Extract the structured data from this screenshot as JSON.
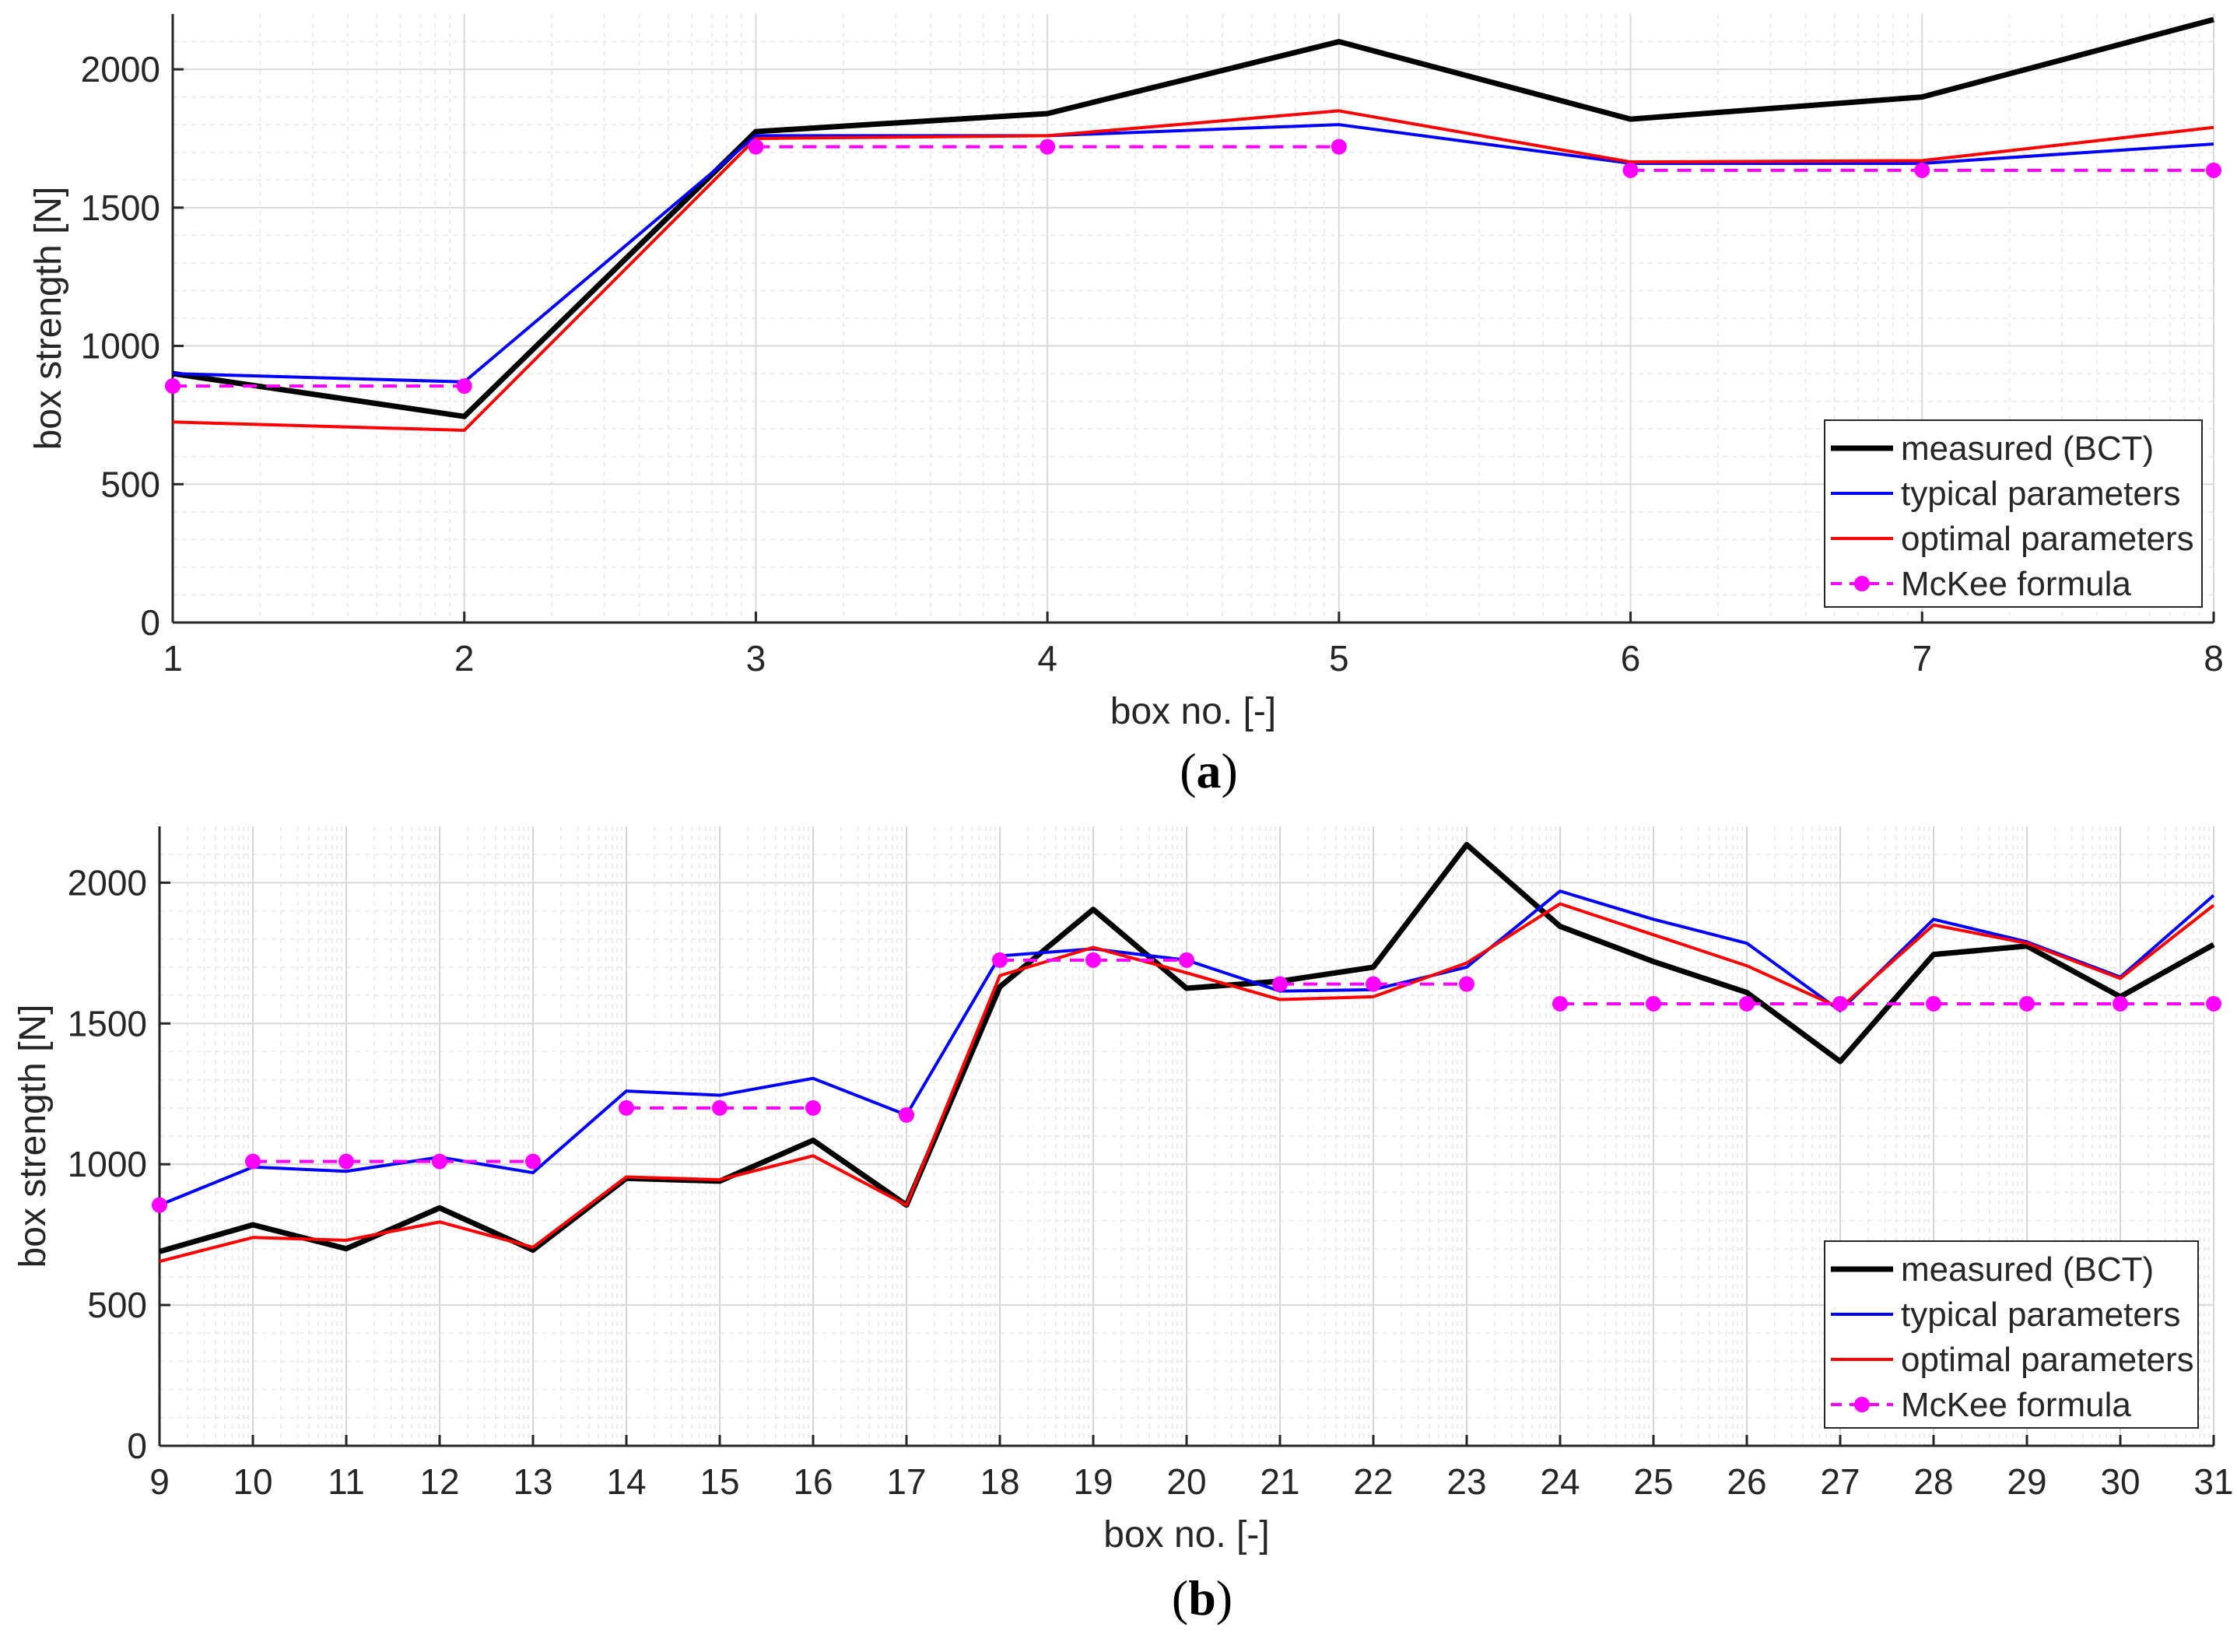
{
  "figure": {
    "colors": {
      "measured": "#000000",
      "typical": "#0000ff",
      "optimal": "#ff0000",
      "mckee": "#ff00ff",
      "grid_major": "#d9d9d9",
      "grid_minor": "#ececec",
      "axis": "#262626"
    }
  },
  "chart_data": [
    {
      "type": "line",
      "panel_label": "a",
      "xlabel": "box no. [-]",
      "ylabel": "box strength [N]",
      "xlim": [
        1,
        8
      ],
      "ylim": [
        0,
        2200
      ],
      "grid": true,
      "minor_grid": true,
      "x_ticks": [
        1,
        2,
        3,
        4,
        5,
        6,
        7,
        8
      ],
      "y_ticks": [
        0,
        500,
        1000,
        1500,
        2000
      ],
      "legend": {
        "placement": "bottom-right",
        "entries": [
          "measured (BCT)",
          "typical parameters",
          "optimal parameters",
          "McKee formula"
        ]
      },
      "x": [
        1,
        2,
        3,
        4,
        5,
        6,
        7,
        8
      ],
      "series": [
        {
          "name": "measured (BCT)",
          "key": "measured",
          "style": "solid-thick",
          "values": [
            900,
            745,
            1775,
            1840,
            2100,
            1820,
            1900,
            2180
          ]
        },
        {
          "name": "typical parameters",
          "key": "typical",
          "style": "solid",
          "values": [
            900,
            870,
            1760,
            1760,
            1800,
            1660,
            1660,
            1730
          ]
        },
        {
          "name": "optimal parameters",
          "key": "optimal",
          "style": "solid",
          "values": [
            725,
            695,
            1750,
            1760,
            1850,
            1665,
            1670,
            1790
          ]
        },
        {
          "name": "McKee formula",
          "key": "mckee",
          "style": "dashed-markers",
          "segments": [
            [
              1,
              2
            ],
            [
              3,
              4,
              5
            ],
            [
              6,
              7,
              8
            ]
          ],
          "values": [
            855,
            855,
            1720,
            1720,
            1720,
            1635,
            1635,
            1635
          ]
        }
      ]
    },
    {
      "type": "line",
      "panel_label": "b",
      "xlabel": "box no. [-]",
      "ylabel": "box strength [N]",
      "xlim": [
        9,
        31
      ],
      "ylim": [
        0,
        2200
      ],
      "grid": true,
      "minor_grid": true,
      "x_ticks": [
        9,
        10,
        11,
        12,
        13,
        14,
        15,
        16,
        17,
        18,
        19,
        20,
        21,
        22,
        23,
        24,
        25,
        26,
        27,
        28,
        29,
        30,
        31
      ],
      "y_ticks": [
        0,
        500,
        1000,
        1500,
        2000
      ],
      "legend": {
        "placement": "bottom-right",
        "entries": [
          "measured (BCT)",
          "typical parameters",
          "optimal parameters",
          "McKee formula"
        ]
      },
      "x": [
        9,
        10,
        11,
        12,
        13,
        14,
        15,
        16,
        17,
        18,
        19,
        20,
        21,
        22,
        23,
        24,
        25,
        26,
        27,
        28,
        29,
        30,
        31
      ],
      "series": [
        {
          "name": "measured (BCT)",
          "key": "measured",
          "style": "solid-thick",
          "values": [
            690,
            785,
            700,
            845,
            695,
            950,
            940,
            1085,
            855,
            1630,
            1905,
            1625,
            1650,
            1700,
            2135,
            1845,
            1720,
            1610,
            1365,
            1745,
            1775,
            1595,
            1780
          ]
        },
        {
          "name": "typical parameters",
          "key": "typical",
          "style": "solid",
          "values": [
            855,
            990,
            975,
            1025,
            970,
            1260,
            1245,
            1305,
            1175,
            1740,
            1765,
            1725,
            1615,
            1620,
            1700,
            1970,
            1870,
            1785,
            1545,
            1870,
            1790,
            1665,
            1955
          ]
        },
        {
          "name": "optimal parameters",
          "key": "optimal",
          "style": "solid",
          "values": [
            655,
            740,
            730,
            795,
            705,
            955,
            945,
            1030,
            855,
            1670,
            1770,
            1680,
            1585,
            1595,
            1715,
            1925,
            1815,
            1705,
            1555,
            1850,
            1785,
            1660,
            1920
          ]
        },
        {
          "name": "McKee formula",
          "key": "mckee",
          "style": "dashed-markers",
          "segments": [
            [
              9
            ],
            [
              10,
              11,
              12,
              13
            ],
            [
              14,
              15,
              16
            ],
            [
              17
            ],
            [
              18,
              19,
              20
            ],
            [
              21,
              22,
              23
            ],
            [
              24,
              25,
              26,
              27,
              28,
              29,
              30,
              31
            ]
          ],
          "values": [
            855,
            1010,
            1010,
            1010,
            1010,
            1200,
            1200,
            1200,
            1175,
            1725,
            1725,
            1725,
            1640,
            1640,
            1640,
            1570,
            1570,
            1570,
            1570,
            1570,
            1570,
            1570,
            1570
          ]
        }
      ]
    }
  ]
}
